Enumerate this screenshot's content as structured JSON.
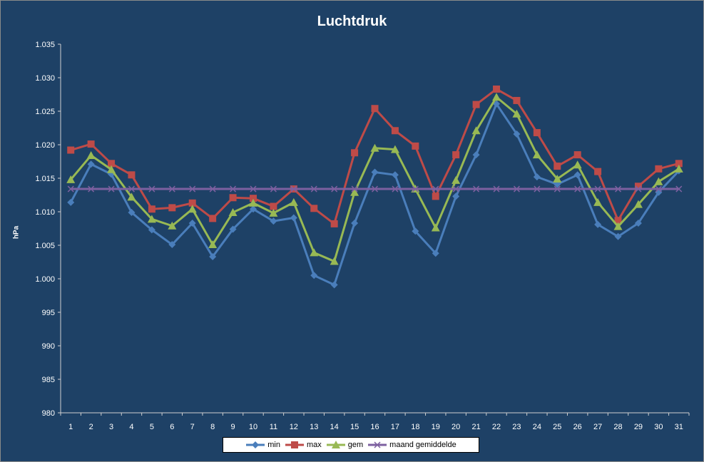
{
  "chart_data": {
    "type": "line",
    "title": "Luchtdruk",
    "xlabel": "",
    "ylabel": "hPa",
    "x": [
      "1",
      "2",
      "3",
      "4",
      "5",
      "6",
      "7",
      "8",
      "9",
      "10",
      "11",
      "12",
      "13",
      "14",
      "15",
      "16",
      "17",
      "18",
      "19",
      "20",
      "21",
      "22",
      "23",
      "24",
      "25",
      "26",
      "27",
      "28",
      "29",
      "30",
      "31"
    ],
    "ylim": [
      980,
      1035
    ],
    "yticks": [
      "980",
      "985",
      "990",
      "995",
      "1.000",
      "1.005",
      "1.010",
      "1.015",
      "1.020",
      "1.025",
      "1.030",
      "1.035"
    ],
    "yticks_values": [
      980,
      985,
      990,
      995,
      1000,
      1005,
      1010,
      1015,
      1020,
      1025,
      1030,
      1035
    ],
    "grid": false,
    "legend": "bottom",
    "series": [
      {
        "name": "min",
        "color": "#4a7ebb",
        "marker": "diamond",
        "values": [
          1011.4,
          1017.1,
          1015.6,
          1009.9,
          1007.3,
          1005.1,
          1008.3,
          1003.3,
          1007.4,
          1010.4,
          1008.6,
          1009.1,
          1000.5,
          999.1,
          1008.3,
          1015.9,
          1015.5,
          1007.1,
          1003.8,
          1012.3,
          1018.5,
          1026.1,
          1021.6,
          1015.2,
          1014.1,
          1015.5,
          1008.1,
          1006.3,
          1008.3,
          1012.9,
          1016.1
        ]
      },
      {
        "name": "max",
        "color": "#be4b48",
        "marker": "square",
        "values": [
          1019.2,
          1020.1,
          1017.2,
          1015.5,
          1010.4,
          1010.6,
          1011.3,
          1009.0,
          1012.1,
          1012.0,
          1010.8,
          1013.4,
          1010.5,
          1008.2,
          1018.8,
          1025.4,
          1022.1,
          1019.8,
          1012.3,
          1018.5,
          1026.0,
          1028.3,
          1026.6,
          1021.8,
          1016.8,
          1018.5,
          1016.0,
          1008.7,
          1013.8,
          1016.4,
          1017.2
        ]
      },
      {
        "name": "gem",
        "color": "#98b954",
        "marker": "triangle",
        "values": [
          1014.8,
          1018.4,
          1016.3,
          1012.2,
          1008.9,
          1007.9,
          1010.4,
          1005.1,
          1009.9,
          1011.3,
          1009.8,
          1011.4,
          1003.9,
          1002.6,
          1012.9,
          1019.5,
          1019.3,
          1013.4,
          1007.6,
          1014.7,
          1022.1,
          1027.1,
          1024.6,
          1018.5,
          1014.9,
          1017.0,
          1011.4,
          1007.8,
          1011.1,
          1014.5,
          1016.4
        ]
      },
      {
        "name": "maand gemiddelde",
        "color": "#7d60a0",
        "marker": "x",
        "values": [
          1013.4,
          1013.4,
          1013.4,
          1013.4,
          1013.4,
          1013.4,
          1013.4,
          1013.4,
          1013.4,
          1013.4,
          1013.4,
          1013.4,
          1013.4,
          1013.4,
          1013.4,
          1013.4,
          1013.4,
          1013.4,
          1013.4,
          1013.4,
          1013.4,
          1013.4,
          1013.4,
          1013.4,
          1013.4,
          1013.4,
          1013.4,
          1013.4,
          1013.4,
          1013.4,
          1013.4
        ]
      }
    ]
  }
}
